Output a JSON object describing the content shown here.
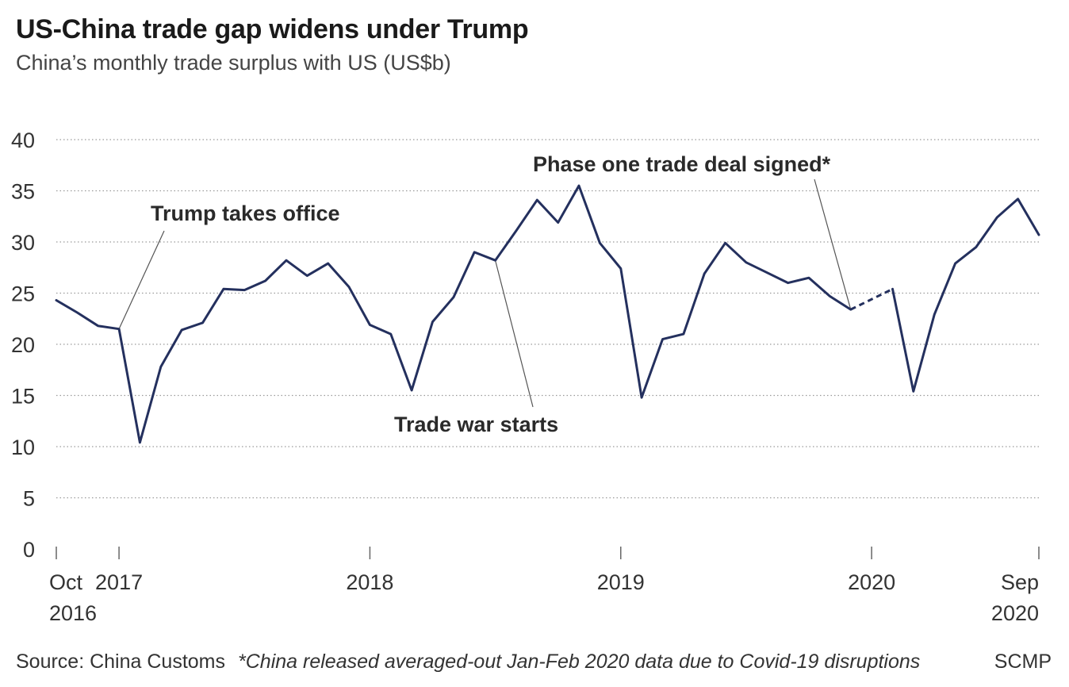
{
  "header": {
    "title": "US-China trade gap widens under Trump",
    "subtitle": "China’s monthly trade surplus with US (US$b)"
  },
  "footer": {
    "source": "Source: China Customs",
    "note": "*China released averaged-out Jan-Feb 2020 data due to Covid-19 disruptions",
    "brand": "SCMP"
  },
  "colors": {
    "line": "#24305e",
    "grid": "#9a9a9a",
    "text": "#333333",
    "leader": "#555555"
  },
  "chart_data": {
    "type": "line",
    "title": "US-China trade gap widens under Trump",
    "subtitle": "China’s monthly trade surplus with US (US$b)",
    "ylim": [
      0,
      40
    ],
    "yticks": [
      "0",
      "5",
      "10",
      "15",
      "20",
      "25",
      "30",
      "35",
      "40"
    ],
    "grid": "horizontal dotted",
    "x_labels": [
      {
        "month": "2016-10",
        "lines": [
          "Oct",
          "2016"
        ]
      },
      {
        "month": "2017-01",
        "lines": [
          "2017"
        ]
      },
      {
        "month": "2018-01",
        "lines": [
          "2018"
        ]
      },
      {
        "month": "2019-01",
        "lines": [
          "2019"
        ]
      },
      {
        "month": "2020-01",
        "lines": [
          "2020"
        ]
      },
      {
        "month": "2020-09",
        "lines": [
          "Sep",
          "2020"
        ]
      }
    ],
    "series": [
      {
        "x": [
          "2016-10",
          "2016-11",
          "2016-12",
          "2017-01",
          "2017-02",
          "2017-03",
          "2017-04",
          "2017-05",
          "2017-06",
          "2017-07",
          "2017-08",
          "2017-09",
          "2017-10",
          "2017-11",
          "2017-12",
          "2018-01",
          "2018-02",
          "2018-03",
          "2018-04",
          "2018-05",
          "2018-06",
          "2018-07",
          "2018-08",
          "2018-09",
          "2018-10",
          "2018-11",
          "2018-12",
          "2019-01",
          "2019-02",
          "2019-03",
          "2019-04",
          "2019-05",
          "2019-06",
          "2019-07",
          "2019-08",
          "2019-09",
          "2019-10",
          "2019-11",
          "2019-12",
          "2020-01",
          "2020-02",
          "2020-03",
          "2020-04",
          "2020-05",
          "2020-06",
          "2020-07",
          "2020-08",
          "2020-09"
        ],
        "values": [
          24.3,
          23.1,
          21.8,
          21.5,
          10.4,
          17.8,
          21.4,
          22.1,
          25.4,
          25.3,
          26.2,
          28.2,
          26.7,
          27.9,
          25.6,
          21.9,
          21.0,
          15.5,
          22.2,
          24.6,
          29.0,
          28.2,
          31.1,
          34.1,
          31.9,
          35.5,
          29.9,
          27.4,
          14.8,
          20.5,
          21.0,
          26.9,
          29.9,
          28.0,
          27.0,
          26.0,
          26.5,
          24.7,
          23.4,
          null,
          25.4,
          15.4,
          22.9,
          27.9,
          29.5,
          32.4,
          34.2,
          30.7
        ],
        "estimated_segment": [
          "2019-12",
          "2020-02"
        ]
      }
    ],
    "annotations": [
      {
        "text": "Trump takes office",
        "month": "2017-01"
      },
      {
        "text": "Trade war starts",
        "month": "2018-07"
      },
      {
        "text": "Phase one trade deal signed*",
        "month": "2019-12"
      }
    ]
  }
}
